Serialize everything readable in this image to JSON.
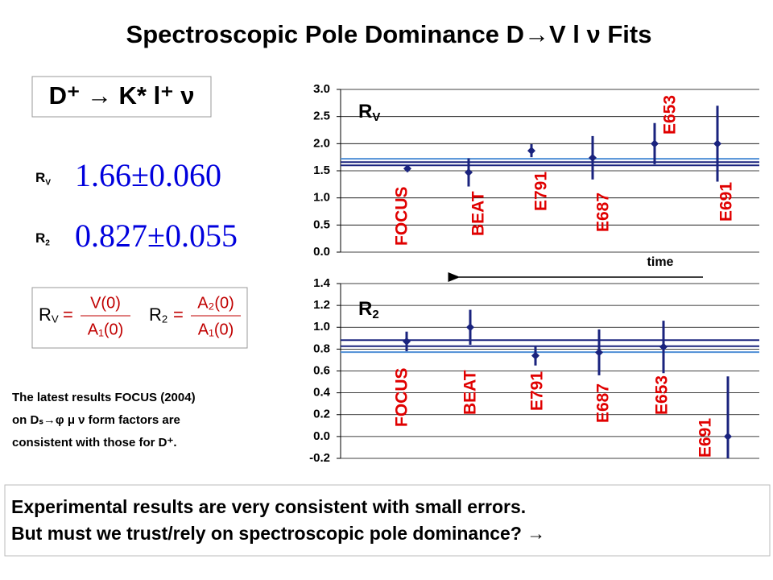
{
  "header": {
    "title": "Spectroscopic Pole Dominance D→V l ν Fits"
  },
  "decay": "D⁺ → K* l⁺ ν",
  "results": [
    {
      "label": {
        "main": "R",
        "sub": "V"
      },
      "value": "1.66±0.060"
    },
    {
      "label": {
        "main": "R",
        "sub": "2"
      },
      "value": "0.827±0.055"
    }
  ],
  "formulas": [
    {
      "label": {
        "main": "R",
        "sub": "V"
      },
      "eq": "=",
      "numerator": "V(0)",
      "denominator": "A₁(0)"
    },
    {
      "label": {
        "main": "R",
        "sub": "2"
      },
      "eq": "=",
      "numerator": "A₂(0)",
      "denominator": "A₁(0)"
    }
  ],
  "note": [
    "The latest results FOCUS (2004)",
    "on  Dₛ→φ μ ν  form factors are",
    "consistent with those for D⁺."
  ],
  "time_label": "time",
  "conclusion": [
    "Experimental results are very consistent with small errors.",
    "But must we trust/rely on spectroscopic pole dominance?  →"
  ],
  "chart_data": [
    {
      "type": "errorbar",
      "title": "R",
      "title_sub": "V",
      "categories": [
        "FOCUS",
        "BEAT",
        "E791",
        "E687",
        "E653",
        "E691"
      ],
      "values": [
        1.54,
        1.47,
        1.87,
        1.74,
        2.0,
        2.0
      ],
      "errors": [
        0.06,
        0.26,
        0.12,
        0.4,
        0.38,
        0.7
      ],
      "color": "#1a237e",
      "label_color": "#e00000",
      "ylim": [
        0,
        3
      ],
      "yticks": [
        {
          "value": 0,
          "label": "0.0"
        },
        0.5,
        {
          "value": 1,
          "label": "1.0"
        },
        1.5,
        {
          "value": 2,
          "label": "2.0"
        },
        2.5,
        {
          "value": 3,
          "label": "3.0"
        }
      ],
      "grid": true,
      "reference_lines": {
        "values": [
          1.6,
          1.66,
          1.72
        ],
        "colors": [
          "#1a237e",
          "#1a237e",
          "#4f8fd6"
        ]
      }
    },
    {
      "type": "errorbar",
      "title": "R",
      "title_sub": "2",
      "categories": [
        "FOCUS",
        "BEAT",
        "E791",
        "E687",
        "E653",
        "E691"
      ],
      "values": [
        0.87,
        1.0,
        0.74,
        0.77,
        0.82,
        0.0
      ],
      "errors": [
        0.09,
        0.16,
        0.09,
        0.21,
        0.24,
        0.55
      ],
      "color": "#1a237e",
      "label_color": "#e00000",
      "ylim": [
        -0.2,
        1.4
      ],
      "yticks": [
        -0.2,
        {
          "value": 0,
          "label": "0.0"
        },
        0.2,
        0.4,
        0.6,
        0.8,
        {
          "value": 1,
          "label": "1.0"
        },
        1.2,
        1.4
      ],
      "grid": true,
      "reference_lines": {
        "values": [
          0.882,
          0.827,
          0.772
        ],
        "colors": [
          "#1a237e",
          "#1a237e",
          "#4f8fd6"
        ]
      }
    }
  ]
}
